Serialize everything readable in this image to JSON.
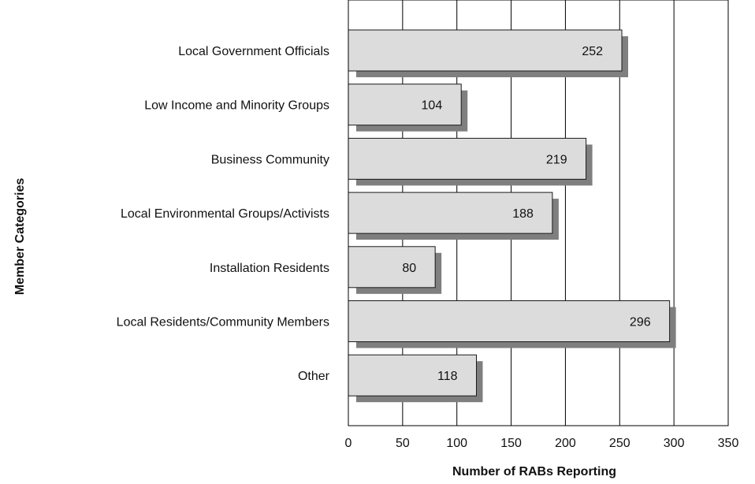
{
  "chart_data": {
    "type": "bar",
    "orientation": "horizontal",
    "categories": [
      "Local Government Officials",
      "Low Income and Minority Groups",
      "Business Community",
      "Local Environmental Groups/Activists",
      "Installation Residents",
      "Local Residents/Community Members",
      "Other"
    ],
    "values": [
      252,
      104,
      219,
      188,
      80,
      296,
      118
    ],
    "xlabel": "Number of RABs Reporting",
    "ylabel": "Member Categories",
    "xlim": [
      0,
      350
    ],
    "xticks": [
      "0",
      "50",
      "100",
      "150",
      "200",
      "250",
      "300",
      "350"
    ],
    "grid": "vertical",
    "legend": "none",
    "colors": {
      "bar_fill": "#dcdcdc",
      "bar_stroke": "#1a1a1a",
      "bar_shadow": "#7f7f7f",
      "grid": "#000000"
    }
  }
}
